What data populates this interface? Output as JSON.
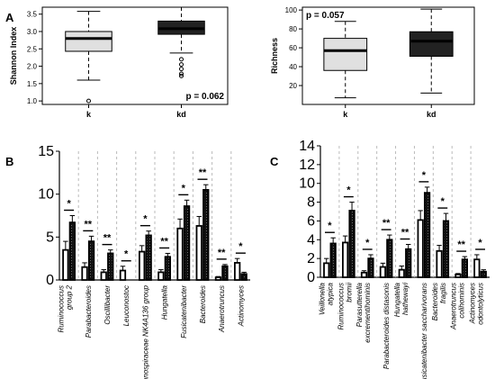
{
  "panel_labels": {
    "a": "A",
    "b": "B",
    "c": "C"
  },
  "chart_data": [
    {
      "type": "boxplot",
      "panel": "A-left",
      "ylabel": "Shannon Index",
      "ylim": [
        0.9,
        3.7
      ],
      "yticks": [
        1.0,
        1.5,
        2.0,
        2.5,
        3.0,
        3.5
      ],
      "pvalue": "p = 0.062",
      "groups": [
        {
          "name": "k",
          "min": 1.6,
          "q1": 2.43,
          "median": 2.8,
          "q3": 3.0,
          "max": 3.58,
          "outliers": [
            1.0
          ],
          "fill": "#e0e0e0"
        },
        {
          "name": "kd",
          "min": 2.38,
          "q1": 2.92,
          "median": 3.08,
          "q3": 3.3,
          "max": 3.7,
          "outliers": [
            2.2,
            2.05,
            1.92,
            1.78,
            1.72
          ],
          "fill": "#222222"
        }
      ]
    },
    {
      "type": "boxplot",
      "panel": "A-right",
      "ylabel": "Richness",
      "ylim": [
        0,
        103
      ],
      "yticks": [
        20,
        40,
        60,
        80,
        100
      ],
      "pvalue": "p = 0.057",
      "groups": [
        {
          "name": "k",
          "min": 7,
          "q1": 36,
          "median": 57,
          "q3": 70,
          "max": 88,
          "outliers": [],
          "fill": "#e0e0e0"
        },
        {
          "name": "kd",
          "min": 12,
          "q1": 51,
          "median": 67,
          "q3": 77,
          "max": 101,
          "outliers": [],
          "fill": "#222222"
        }
      ]
    },
    {
      "type": "bar",
      "panel": "B",
      "ylim": [
        0,
        15
      ],
      "yticks": [
        0,
        5,
        10,
        15
      ],
      "categories": [
        "Ruminococcus group 2",
        "Parabacteroides",
        "Oscillibacter",
        "Leuconostoc",
        "Lachnospiraceae NK4A136 group",
        "Hungatella",
        "Fusicatenibacter",
        "Bacteroides",
        "Anaerotruncus",
        "Actinomyces"
      ],
      "significance": [
        "*",
        "**",
        "**",
        "*",
        "*",
        "**",
        "*",
        "**",
        "**",
        "*"
      ],
      "series": [
        {
          "name": "k",
          "values": [
            3.5,
            1.5,
            0.9,
            1.1,
            3.3,
            0.9,
            6.0,
            6.3,
            0.3,
            2.0
          ],
          "errors": [
            1.0,
            0.5,
            0.3,
            0.5,
            0.7,
            0.3,
            1.1,
            1.1,
            0.1,
            0.5
          ],
          "fill": "#ffffff"
        },
        {
          "name": "kd",
          "values": [
            6.7,
            4.5,
            3.1,
            0.0,
            5.2,
            2.7,
            8.6,
            10.5,
            1.6,
            0.7
          ],
          "errors": [
            0.8,
            0.6,
            0.4,
            0.0,
            0.5,
            0.4,
            0.7,
            0.6,
            0.2,
            0.2
          ],
          "fill": "#1a1a1a"
        }
      ]
    },
    {
      "type": "bar",
      "panel": "C",
      "ylim": [
        0,
        14
      ],
      "yticks": [
        0,
        2,
        4,
        6,
        8,
        10,
        12,
        14
      ],
      "categories": [
        "Veillonella atypica",
        "Ruminococcus bromii",
        "Parasutterella excrementihominis",
        "Parabacteroides distasonis",
        "Hungatella hathewayi",
        "Fusicatenibacter saccharivorans",
        "Bacteroides fragilis",
        "Anaerotruncus colihominis",
        "Actinomyces odontolyticus"
      ],
      "significance": [
        "*",
        "*",
        "*",
        "**",
        "**",
        "*",
        "*",
        "**",
        "*"
      ],
      "series": [
        {
          "name": "k",
          "values": [
            1.5,
            3.7,
            0.5,
            1.1,
            0.8,
            6.1,
            2.8,
            0.3,
            1.9
          ],
          "errors": [
            0.5,
            0.7,
            0.2,
            0.4,
            0.4,
            1.0,
            0.6,
            0.1,
            0.5
          ],
          "fill": "#ffffff"
        },
        {
          "name": "kd",
          "values": [
            3.6,
            7.1,
            2.0,
            4.0,
            3.0,
            9.0,
            6.0,
            1.9,
            0.6
          ],
          "errors": [
            0.6,
            0.9,
            0.4,
            0.5,
            0.5,
            0.6,
            0.8,
            0.3,
            0.2
          ],
          "fill": "#1a1a1a"
        }
      ]
    }
  ]
}
